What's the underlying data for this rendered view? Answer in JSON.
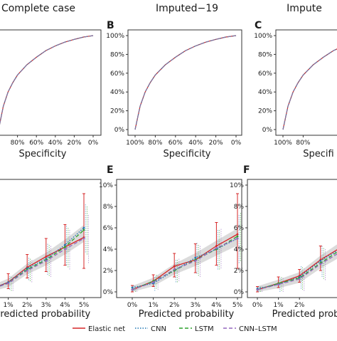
{
  "legend": [
    {
      "name": "Elastic net",
      "color": "#d62728",
      "dash": "solid"
    },
    {
      "name": "CNN",
      "color": "#1f77b4",
      "dash": "dotted"
    },
    {
      "name": "LSTM",
      "color": "#2ca02c",
      "dash": "dashed"
    },
    {
      "name": "CNN–LSTM",
      "color": "#9467bd",
      "dash": "dashed"
    }
  ],
  "chart_data": [
    {
      "panel": "",
      "title": "Complete case",
      "type": "line",
      "xlabel": "Specificity",
      "xticks": [
        "80%",
        "60%",
        "40%",
        "20%",
        "0%"
      ],
      "yticks": [],
      "x": [
        1.0,
        0.95,
        0.9,
        0.85,
        0.8,
        0.7,
        0.6,
        0.5,
        0.4,
        0.3,
        0.2,
        0.1,
        0.0
      ],
      "y": [
        0.0,
        0.25,
        0.4,
        0.5,
        0.58,
        0.69,
        0.77,
        0.84,
        0.89,
        0.93,
        0.96,
        0.985,
        1.0
      ]
    },
    {
      "panel": "B",
      "title": "Imputed−19",
      "type": "line",
      "xlabel": "Specificity",
      "xticks": [
        "100%",
        "80%",
        "60%",
        "40%",
        "20%",
        "0%"
      ],
      "yticks": [
        "0%",
        "20%",
        "40%",
        "60%",
        "80%",
        "100%"
      ],
      "x": [
        1.0,
        0.95,
        0.9,
        0.85,
        0.8,
        0.7,
        0.6,
        0.5,
        0.4,
        0.3,
        0.2,
        0.1,
        0.0
      ],
      "y": [
        0.0,
        0.25,
        0.4,
        0.5,
        0.58,
        0.69,
        0.77,
        0.84,
        0.89,
        0.93,
        0.96,
        0.985,
        1.0
      ]
    },
    {
      "panel": "C",
      "title": "Impute",
      "type": "line",
      "xlabel": "Specifi",
      "xticks": [
        "100%",
        "80%"
      ],
      "yticks": [
        "0%",
        "20%",
        "40%",
        "60%",
        "80%",
        "100%"
      ],
      "x": [
        1.0,
        0.95,
        0.9,
        0.85,
        0.8,
        0.7,
        0.6,
        0.5,
        0.4,
        0.3,
        0.2,
        0.1,
        0.0
      ],
      "y": [
        0.0,
        0.25,
        0.4,
        0.5,
        0.58,
        0.69,
        0.77,
        0.84,
        0.89,
        0.93,
        0.96,
        0.985,
        1.0
      ]
    },
    {
      "panel": "",
      "title": "",
      "type": "line",
      "xlabel": "Predicted probability",
      "xticks": [
        "1%",
        "2%",
        "3%",
        "4%",
        "5%"
      ],
      "yticks": [],
      "ylim": [
        0,
        0.1
      ],
      "x": [
        0.0,
        0.01,
        0.02,
        0.03,
        0.04,
        0.05
      ],
      "series": [
        {
          "name": "Elastic net",
          "values": [
            0.002,
            0.009,
            0.023,
            0.033,
            0.042,
            0.051
          ],
          "lower": [
            0.0,
            0.003,
            0.013,
            0.019,
            0.025,
            0.022
          ],
          "upper": [
            0.005,
            0.017,
            0.035,
            0.05,
            0.063,
            0.092
          ]
        },
        {
          "name": "CNN",
          "values": [
            0.002,
            0.009,
            0.022,
            0.031,
            0.044,
            0.06
          ]
        },
        {
          "name": "LSTM",
          "values": [
            0.002,
            0.008,
            0.021,
            0.03,
            0.042,
            0.058
          ]
        },
        {
          "name": "CNN–LSTM",
          "values": [
            0.002,
            0.008,
            0.02,
            0.029,
            0.04,
            0.05
          ]
        }
      ]
    },
    {
      "panel": "E",
      "title": "",
      "type": "line",
      "xlabel": "Predicted probability",
      "xticks": [
        "0%",
        "1%",
        "2%",
        "3%",
        "4%",
        "5%"
      ],
      "yticks": [
        "0%",
        "2%",
        "4%",
        "6%",
        "8%",
        "10%"
      ],
      "ylim": [
        0,
        0.1
      ],
      "x": [
        0.0,
        0.01,
        0.02,
        0.03,
        0.04,
        0.05
      ],
      "series": [
        {
          "name": "Elastic net",
          "values": [
            0.002,
            0.01,
            0.024,
            0.03,
            0.043,
            0.054
          ],
          "lower": [
            0.0,
            0.005,
            0.014,
            0.018,
            0.025,
            0.022
          ],
          "upper": [
            0.006,
            0.016,
            0.036,
            0.045,
            0.065,
            0.092
          ]
        },
        {
          "name": "CNN",
          "values": [
            0.004,
            0.008,
            0.02,
            0.032,
            0.04,
            0.05
          ]
        },
        {
          "name": "LSTM",
          "values": [
            0.002,
            0.01,
            0.02,
            0.03,
            0.04,
            0.052
          ]
        },
        {
          "name": "CNN–LSTM",
          "values": [
            0.002,
            0.009,
            0.021,
            0.029,
            0.041,
            0.05
          ]
        }
      ]
    },
    {
      "panel": "F",
      "title": "",
      "type": "line",
      "xlabel": "Predicted proba",
      "xticks": [
        "0%",
        "1%",
        "2%"
      ],
      "yticks": [
        "0%",
        "2%",
        "4%",
        "6%",
        "8%",
        "10%"
      ],
      "ylim": [
        0,
        0.1
      ],
      "x": [
        0.0,
        0.01,
        0.02,
        0.03,
        0.04,
        0.05
      ],
      "series": [
        {
          "name": "Elastic net",
          "values": [
            0.002,
            0.008,
            0.015,
            0.03,
            0.042,
            0.052
          ],
          "lower": [
            0.0,
            0.004,
            0.009,
            0.02,
            0.03,
            0.035
          ],
          "upper": [
            0.005,
            0.014,
            0.021,
            0.043,
            0.055,
            0.07
          ]
        },
        {
          "name": "CNN",
          "values": [
            0.003,
            0.007,
            0.014,
            0.029,
            0.041,
            0.05
          ]
        },
        {
          "name": "LSTM",
          "values": [
            0.002,
            0.008,
            0.013,
            0.027,
            0.04,
            0.05
          ]
        },
        {
          "name": "CNN–LSTM",
          "values": [
            0.002,
            0.007,
            0.012,
            0.026,
            0.038,
            0.048
          ]
        }
      ]
    }
  ]
}
